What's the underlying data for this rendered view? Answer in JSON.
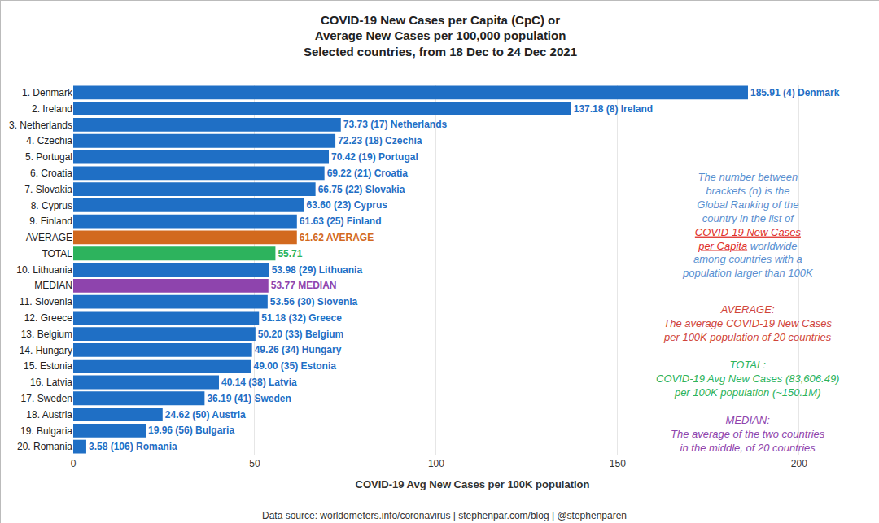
{
  "chart_data": {
    "type": "bar",
    "orientation": "horizontal",
    "title": [
      "COVID-19 New Cases per Capita (CpC) or",
      "Average New Cases per 100,000 population",
      "Selected countries, from 18 Dec to 24 Dec 2021"
    ],
    "x_label": "COVID-19 Avg New Cases per 100K population",
    "source": "Data source: worldometers.info/coronavirus | stephenpar.com/blog | @stephenparen",
    "categories": [
      "1. Denmark",
      "2. Ireland",
      "3. Netherlands",
      "4. Czechia",
      "5. Portugal",
      "6. Croatia",
      "7. Slovakia",
      "8. Cyprus",
      "9. Finland",
      "AVERAGE",
      "TOTAL",
      "10. Lithuania",
      "MEDIAN",
      "11. Slovenia",
      "12. Greece",
      "13. Belgium",
      "14. Hungary",
      "15. Estonia",
      "16. Latvia",
      "17. Sweden",
      "18. Austria",
      "19. Bulgaria",
      "20. Romania"
    ],
    "values": [
      185.91,
      137.18,
      73.73,
      72.23,
      70.42,
      69.22,
      66.75,
      63.6,
      61.63,
      61.62,
      55.71,
      53.98,
      53.77,
      53.56,
      51.18,
      50.2,
      49.26,
      49.0,
      40.14,
      36.19,
      24.62,
      19.96,
      3.58
    ],
    "value_labels": [
      "185.91 (4) Denmark",
      "137.18 (8) Ireland",
      "73.73 (17) Netherlands",
      "72.23 (18) Czechia",
      "70.42 (19) Portugal",
      "69.22 (21) Croatia",
      "66.75 (22) Slovakia",
      "63.60 (23) Cyprus",
      "61.63 (25) Finland",
      "61.62 AVERAGE",
      "55.71",
      "53.98 (29) Lithuania",
      "53.77 MEDIAN",
      "53.56 (30) Slovenia",
      "51.18 (32) Greece",
      "50.20 (33) Belgium",
      "49.26 (34) Hungary",
      "49.00 (35) Estonia",
      "40.14 (38) Latvia",
      "36.19 (41) Sweden",
      "24.62 (50) Austria",
      "19.96 (56) Bulgaria",
      "3.58 (106) Romania"
    ],
    "colors": [
      "#1f6fc5",
      "#1f6fc5",
      "#1f6fc5",
      "#1f6fc5",
      "#1f6fc5",
      "#1f6fc5",
      "#1f6fc5",
      "#1f6fc5",
      "#1f6fc5",
      "#d2691e",
      "#2db35d",
      "#1f6fc5",
      "#8e44ad",
      "#1f6fc5",
      "#1f6fc5",
      "#1f6fc5",
      "#1f6fc5",
      "#1f6fc5",
      "#1f6fc5",
      "#1f6fc5",
      "#1f6fc5",
      "#1f6fc5",
      "#1f6fc5"
    ],
    "xlim": [
      0,
      220
    ],
    "xticks": [
      0,
      50,
      100,
      150,
      200
    ],
    "grid": true,
    "data_labels": true,
    "annotations": [
      {
        "lines": [
          "The number between",
          "brackets (n) is the",
          "Global Ranking of the",
          "country in the list of",
          "COVID-19 New Cases",
          "per Capita worldwide",
          "among countries with a",
          "population larger than 100K"
        ],
        "color": "#5b8fd0",
        "link": [
          "COVID-19 New Cases",
          "per Capita"
        ],
        "link_color": "#e0302a"
      },
      {
        "lines": [
          "AVERAGE:",
          "The average COVID-19 New Cases",
          "per 100K population of 20 countries"
        ],
        "color": "#d0453a"
      },
      {
        "lines": [
          "TOTAL:",
          "COVID-19 Avg New Cases (83,606.49)",
          "per 100K population (~150.1M)"
        ],
        "color": "#2db35d"
      },
      {
        "lines": [
          "MEDIAN:",
          "The average of the two countries",
          "in the middle, of 20 countries"
        ],
        "color": "#8e44ad"
      }
    ]
  }
}
